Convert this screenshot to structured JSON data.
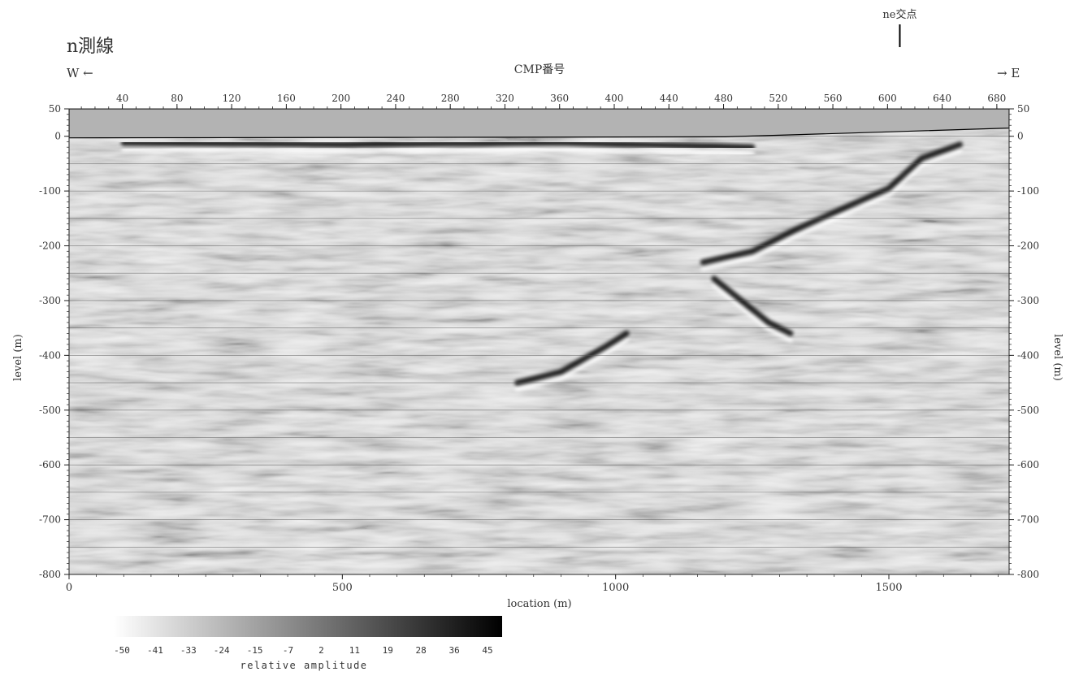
{
  "chart_data": {
    "type": "heatmap",
    "title": "n測線",
    "west_label": "W ←",
    "east_label": "→ E",
    "intersection_label": "ne交点",
    "intersection_location_m": 1520,
    "top_axis_title": "CMP番号",
    "cmp_ticks": [
      40,
      80,
      120,
      160,
      200,
      240,
      280,
      320,
      360,
      400,
      440,
      480,
      520,
      560,
      600,
      640,
      680
    ],
    "xlabel": "location (m)",
    "x_ticks": [
      0,
      500,
      1000,
      1500
    ],
    "xlim": [
      0,
      1720
    ],
    "ylabel": "level (m)",
    "y_ticks": [
      50,
      0,
      -100,
      -200,
      -300,
      -400,
      -500,
      -600,
      -700,
      -800
    ],
    "ylim": [
      -800,
      50
    ],
    "gridlines_every_m": 50,
    "surface_profile": [
      {
        "x": 0,
        "level": -3
      },
      {
        "x": 600,
        "level": -2
      },
      {
        "x": 1200,
        "level": -1
      },
      {
        "x": 1300,
        "level": 2
      },
      {
        "x": 1500,
        "level": 8
      },
      {
        "x": 1720,
        "level": 15
      }
    ],
    "strong_reflectors": [
      {
        "name": "shallow",
        "points": [
          [
            100,
            -12
          ],
          [
            500,
            -15
          ],
          [
            900,
            -12
          ],
          [
            1250,
            -20
          ]
        ]
      },
      {
        "name": "deep-bowl",
        "points": [
          [
            820,
            -450
          ],
          [
            900,
            -430
          ],
          [
            980,
            -385
          ],
          [
            1020,
            -360
          ]
        ]
      },
      {
        "name": "east-rise",
        "points": [
          [
            1160,
            -230
          ],
          [
            1250,
            -210
          ],
          [
            1330,
            -170
          ],
          [
            1420,
            -130
          ],
          [
            1500,
            -95
          ],
          [
            1560,
            -40
          ],
          [
            1630,
            -15
          ]
        ]
      },
      {
        "name": "east-dip",
        "points": [
          [
            1180,
            -260
          ],
          [
            1230,
            -300
          ],
          [
            1280,
            -340
          ],
          [
            1320,
            -360
          ]
        ]
      }
    ],
    "colorbar": {
      "label": "relative amplitude",
      "ticks": [
        "-50",
        "-41",
        "-33",
        "-24",
        "-15",
        "-7",
        "2",
        "11",
        "19",
        "28",
        "36",
        "45"
      ],
      "min_color": "#ffffff",
      "max_color": "#000000"
    }
  }
}
